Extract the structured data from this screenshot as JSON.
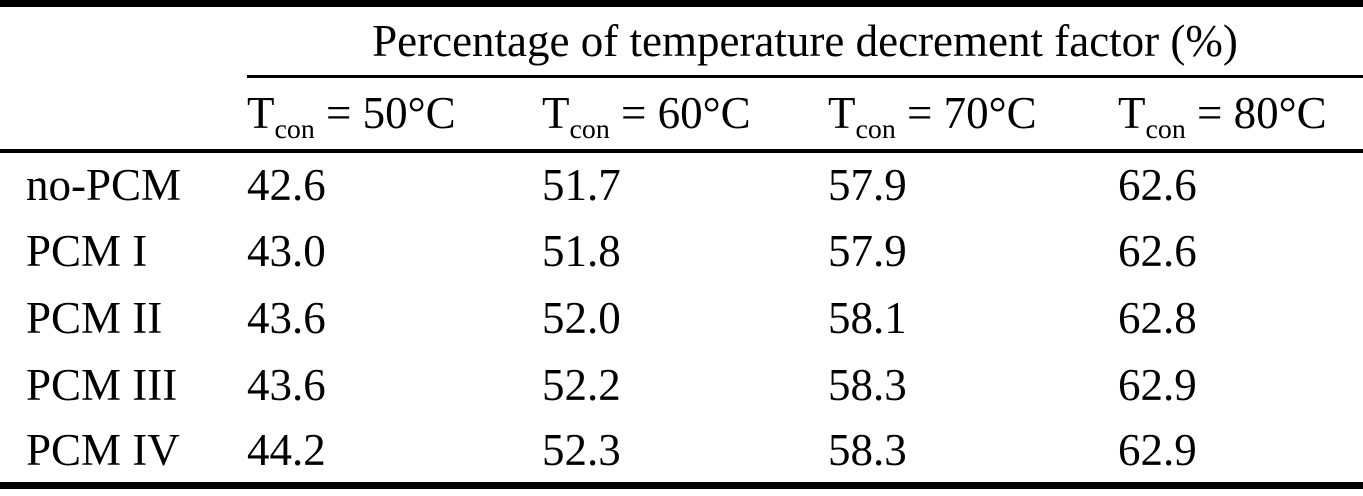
{
  "table": {
    "spanning_header": "Percentage of temperature decrement factor (%)",
    "columns": [
      {
        "base": "T",
        "sub": "con",
        "rest": " = 50°C"
      },
      {
        "base": "T",
        "sub": "con",
        "rest": " = 60°C"
      },
      {
        "base": "T",
        "sub": "con",
        "rest": " = 70°C"
      },
      {
        "base": "T",
        "sub": "con",
        "rest": " = 80°C"
      }
    ],
    "rows": [
      {
        "label": "no-PCM",
        "values": [
          "42.6",
          "51.7",
          "57.9",
          "62.6"
        ]
      },
      {
        "label": "PCM I",
        "values": [
          "43.0",
          "51.8",
          "57.9",
          "62.6"
        ]
      },
      {
        "label": "PCM II",
        "values": [
          "43.6",
          "52.0",
          "58.1",
          "62.8"
        ]
      },
      {
        "label": "PCM III",
        "values": [
          "43.6",
          "52.2",
          "58.3",
          "62.9"
        ]
      },
      {
        "label": "PCM IV",
        "values": [
          "44.2",
          "52.3",
          "58.3",
          "62.9"
        ]
      }
    ],
    "colors": {
      "text": "#000000",
      "rules": "#000000",
      "background": "#ffffff"
    }
  },
  "chart_data": {
    "type": "table",
    "title": "Percentage of temperature decrement factor (%)",
    "categories": [
      "Tcon = 50°C",
      "Tcon = 60°C",
      "Tcon = 70°C",
      "Tcon = 80°C"
    ],
    "series": [
      {
        "name": "no-PCM",
        "values": [
          42.6,
          51.7,
          57.9,
          62.6
        ]
      },
      {
        "name": "PCM I",
        "values": [
          43.0,
          51.8,
          57.9,
          62.6
        ]
      },
      {
        "name": "PCM II",
        "values": [
          43.6,
          52.0,
          58.1,
          62.8
        ]
      },
      {
        "name": "PCM III",
        "values": [
          43.6,
          52.2,
          58.3,
          62.9
        ]
      },
      {
        "name": "PCM IV",
        "values": [
          44.2,
          52.3,
          58.3,
          62.9
        ]
      }
    ]
  }
}
